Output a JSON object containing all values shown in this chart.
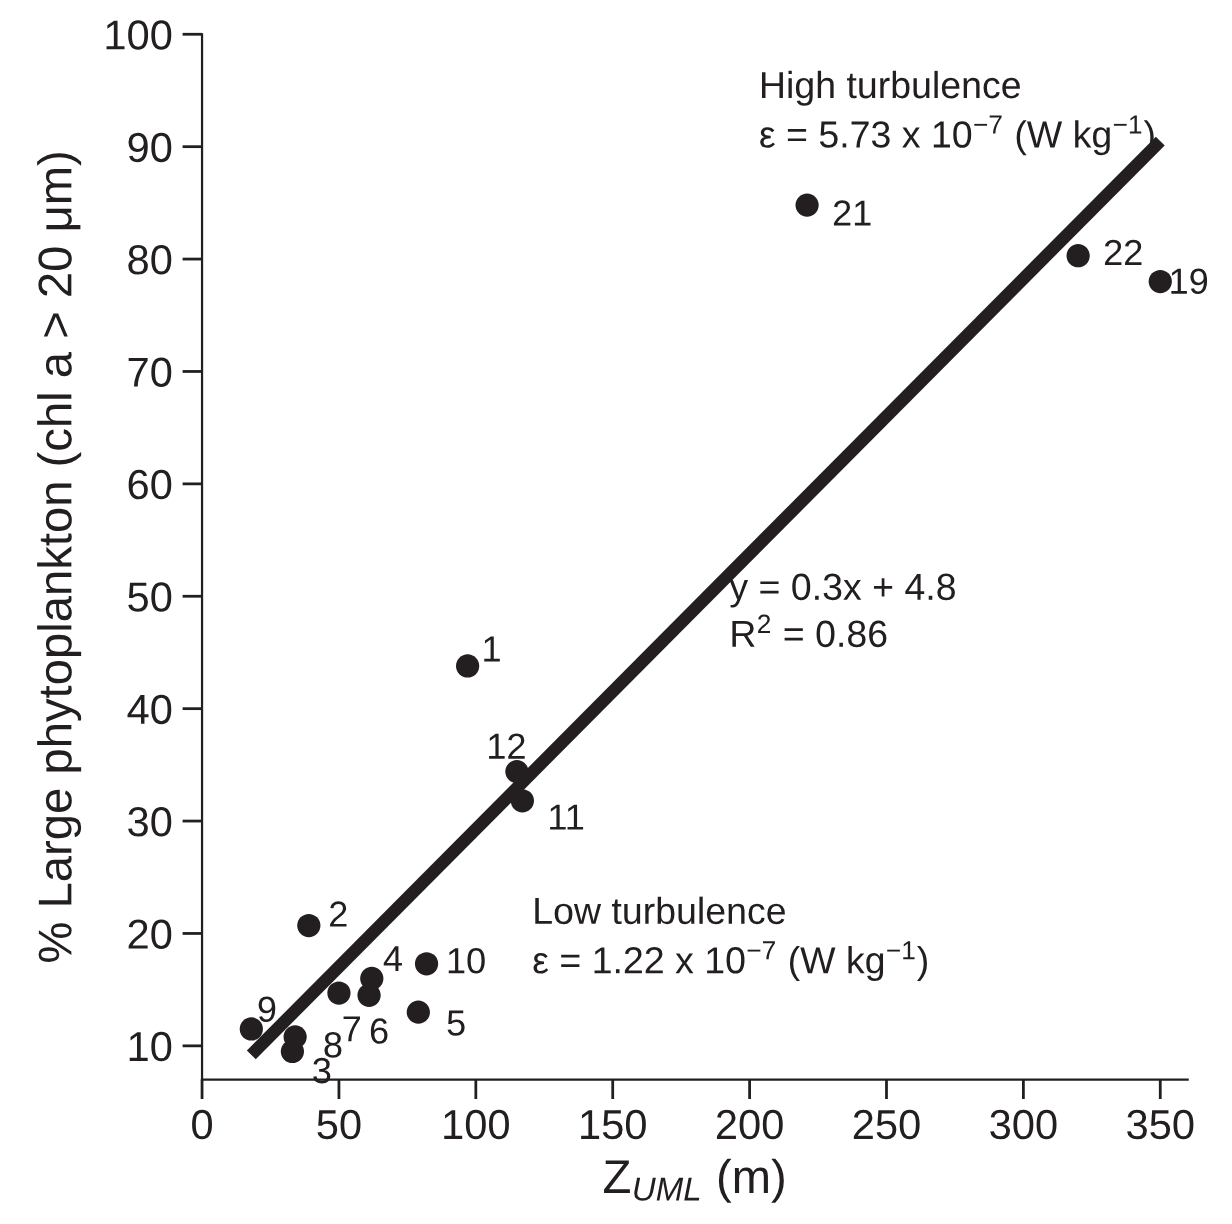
{
  "chart_data": {
    "type": "scatter",
    "xlabel": "Z$_{UML}$ (m)",
    "ylabel": "% Large phytoplankton (chl a > 20 μm)",
    "xlim": [
      0,
      360
    ],
    "ylim": [
      7,
      100
    ],
    "xticks": [
      0,
      50,
      100,
      150,
      200,
      250,
      300,
      350
    ],
    "yticks": [
      10,
      20,
      30,
      40,
      50,
      60,
      70,
      80,
      90,
      100
    ],
    "grid": false,
    "series": [
      {
        "marker": "circle",
        "color": "#231f20",
        "x": [
          97,
          39,
          33,
          62,
          79,
          61,
          50,
          34,
          18,
          82,
          117,
          115,
          350,
          221,
          320
        ],
        "values": [
          43.8,
          20.7,
          9.5,
          16,
          13,
          14.5,
          14.7,
          10.8,
          11.5,
          17.3,
          31.8,
          34.4,
          78,
          84.8,
          80.3
        ]
      },
      {
        "type": "line",
        "color": "#231f20",
        "line_style": "solid",
        "x": [
          18,
          350
        ],
        "values": [
          9.2,
          90.5
        ]
      }
    ],
    "annotations": [
      {
        "text": "1",
        "x": 97,
        "y": 43.8
      },
      {
        "text": "2",
        "x": 39,
        "y": 20.7
      },
      {
        "text": "3",
        "x": 33,
        "y": 9.5
      },
      {
        "text": "4",
        "x": 62,
        "y": 16
      },
      {
        "text": "5",
        "x": 79,
        "y": 13
      },
      {
        "text": "6",
        "x": 61,
        "y": 14.5
      },
      {
        "text": "7",
        "x": 50,
        "y": 14.7
      },
      {
        "text": "8",
        "x": 34,
        "y": 10.8
      },
      {
        "text": "9",
        "x": 18,
        "y": 11.5
      },
      {
        "text": "10",
        "x": 82,
        "y": 17.3
      },
      {
        "text": "11",
        "x": 117,
        "y": 31.8
      },
      {
        "text": "12",
        "x": 115,
        "y": 34.4
      },
      {
        "text": "19",
        "x": 350,
        "y": 78
      },
      {
        "text": "21",
        "x": 221,
        "y": 84.8
      },
      {
        "text": "22",
        "x": 320,
        "y": 80.3
      },
      "High turbulence\nε = 5.73 x 10$^{−7}$ (W kg$^{−1}$)",
      "Low turbulence\nε = 1.22 x 10$^{−7}$ (W kg$^{−1}$)",
      "y = 0.3x + 4.8",
      "R$^{2}$ = 0.86"
    ]
  }
}
